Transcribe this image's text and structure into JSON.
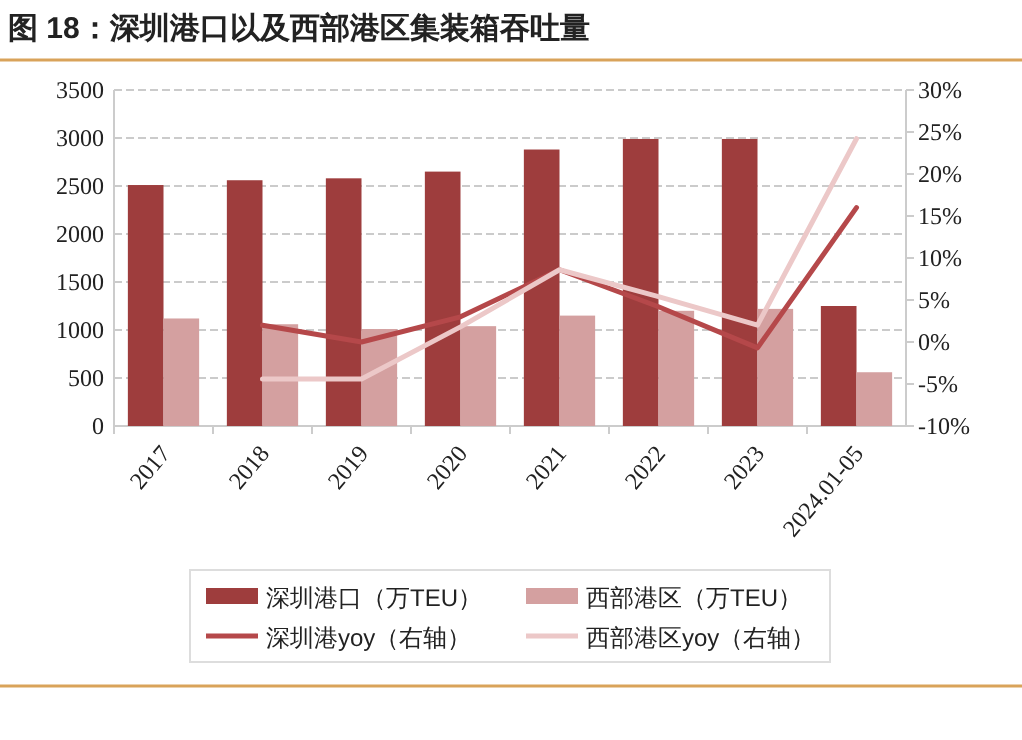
{
  "chart_data": {
    "type": "bar",
    "title": "图 18：深圳港口以及西部港区集装箱吞吐量",
    "categories": [
      "2017",
      "2018",
      "2019",
      "2020",
      "2021",
      "2022",
      "2023",
      "2024.01-05"
    ],
    "series": [
      {
        "name": "深圳港口（万TEU）",
        "color": "#9e3d3d",
        "values": [
          2510,
          2560,
          2580,
          2650,
          2880,
          2990,
          2990,
          1250
        ]
      },
      {
        "name": "西部港区（万TEU）",
        "color": "#d4a0a0",
        "values": [
          1120,
          1060,
          1010,
          1040,
          1150,
          1200,
          1220,
          560
        ]
      },
      {
        "name": "深圳港yoy（右轴）",
        "type": "line",
        "axis": "y2",
        "color": "#b5484a",
        "values": [
          null,
          2.0,
          0.0,
          3.0,
          8.6,
          4.2,
          -0.7,
          16.0
        ]
      },
      {
        "name": "西部港区yoy（右轴）",
        "type": "line",
        "axis": "y2",
        "color": "#ecc8c8",
        "values": [
          null,
          -4.4,
          -4.4,
          1.8,
          8.6,
          5.4,
          2.0,
          24.2
        ]
      }
    ],
    "ylim": [
      0,
      3500
    ],
    "yticks": [
      0,
      500,
      1000,
      1500,
      2000,
      2500,
      3000,
      3500
    ],
    "y2lim": [
      -10,
      30
    ],
    "y2ticks": [
      {
        "value": -10,
        "label": "-10%"
      },
      {
        "value": -5,
        "label": "-5%"
      },
      {
        "value": 0,
        "label": "0%"
      },
      {
        "value": 5,
        "label": "5%"
      },
      {
        "value": 10,
        "label": "10%"
      },
      {
        "value": 15,
        "label": "15%"
      },
      {
        "value": 20,
        "label": "20%"
      },
      {
        "value": 25,
        "label": "25%"
      },
      {
        "value": 30,
        "label": "30%"
      }
    ],
    "grid": "y",
    "legend": "bottom",
    "marker": "none",
    "line_style": "solid"
  }
}
